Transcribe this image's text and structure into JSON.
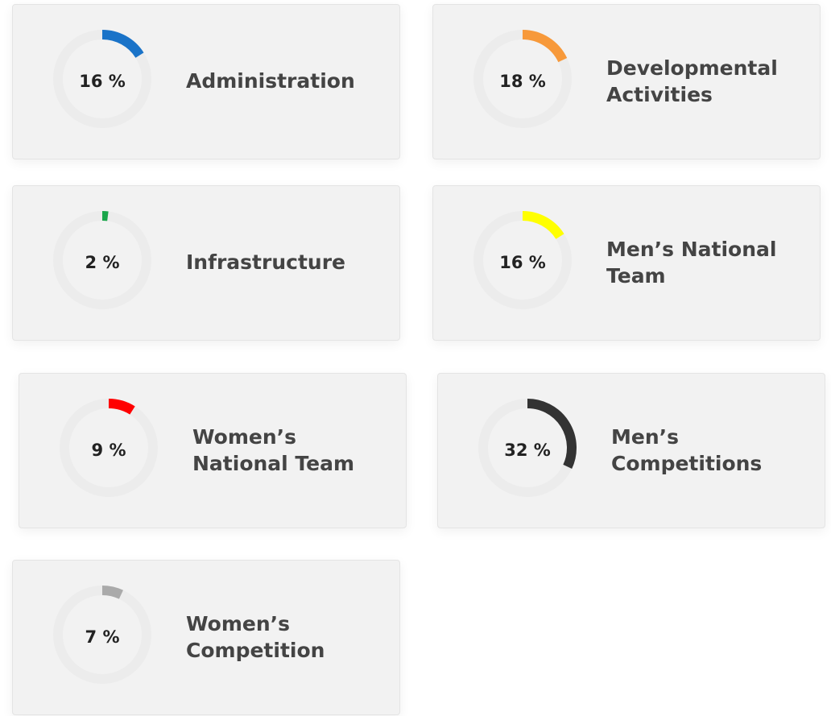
{
  "chart_data": [
    {
      "type": "radial",
      "title": [
        "Administration"
      ],
      "values": [
        16
      ],
      "value_labels": [
        "16 %"
      ],
      "color": "#1a73c8"
    },
    {
      "type": "radial",
      "title": [
        "Developmental",
        "Activities"
      ],
      "values": [
        18
      ],
      "value_labels": [
        "18 %"
      ],
      "color": "#f7993a"
    },
    {
      "type": "radial",
      "title": [
        "Infrastructure"
      ],
      "values": [
        2
      ],
      "value_labels": [
        "2 %"
      ],
      "color": "#1aa64b"
    },
    {
      "type": "radial",
      "title": [
        "Men’s National",
        "Team"
      ],
      "values": [
        16
      ],
      "value_labels": [
        "16 %"
      ],
      "color": "#ffff00"
    },
    {
      "type": "radial",
      "title": [
        "Women’s",
        "National Team"
      ],
      "values": [
        9
      ],
      "value_labels": [
        "9 %"
      ],
      "color": "#ff0000"
    },
    {
      "type": "radial",
      "title": [
        "Men’s",
        "Competitions"
      ],
      "values": [
        32
      ],
      "value_labels": [
        "32 %"
      ],
      "color": "#333333"
    },
    {
      "type": "radial",
      "title": [
        "Women’s",
        "Competition"
      ],
      "values": [
        7
      ],
      "value_labels": [
        "7 %"
      ],
      "color": "#aaaaaa"
    }
  ]
}
